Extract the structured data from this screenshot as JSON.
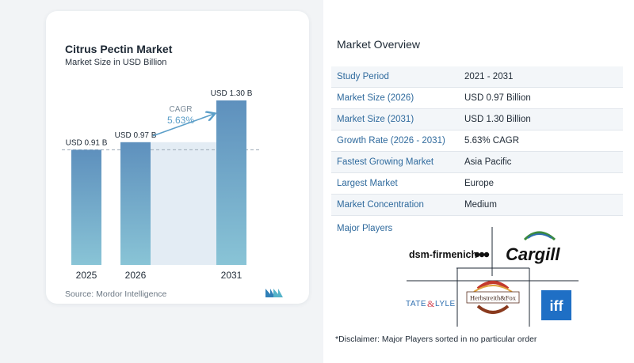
{
  "chart_data": {
    "type": "bar",
    "title": "Citrus Pectin Market",
    "subtitle": "Market Size in USD Billion",
    "categories": [
      "2025",
      "2026",
      "2031"
    ],
    "values": [
      0.91,
      0.97,
      1.3
    ],
    "data_labels": [
      "USD 0.91 B",
      "USD 0.97 B",
      "USD 1.30 B"
    ],
    "ylim": [
      0,
      1.4
    ],
    "cagr_label": "CAGR",
    "cagr_value": "5.63%",
    "source": "Source: Mordor Intelligence",
    "colors": {
      "bar_top": "#5e90bd",
      "bar_bottom": "#89c4d6",
      "shade": "#e3ecf4",
      "accent": "#5b9ec8"
    }
  },
  "overview": {
    "title": "Market Overview",
    "rows": [
      {
        "label": "Study Period",
        "value": "2021 - 2031"
      },
      {
        "label": "Market Size (2026)",
        "value": "USD 0.97 Billion"
      },
      {
        "label": "Market Size (2031)",
        "value": "USD 1.30 Billion"
      },
      {
        "label": "Growth Rate (2026 - 2031)",
        "value": "5.63% CAGR"
      },
      {
        "label": "Fastest Growing Market",
        "value": "Asia Pacific"
      },
      {
        "label": "Largest Market",
        "value": "Europe"
      },
      {
        "label": "Market Concentration",
        "value": "Medium"
      }
    ],
    "players_title": "Major Players",
    "players": {
      "dsm": "dsm-firmenich",
      "cargill": "Cargill",
      "tate": "TATE",
      "lyle": "LYLE",
      "herbstreith": "Herbstreith&Fox",
      "iff": "iff"
    },
    "disclaimer": "*Disclaimer: Major Players sorted in no particular order"
  }
}
